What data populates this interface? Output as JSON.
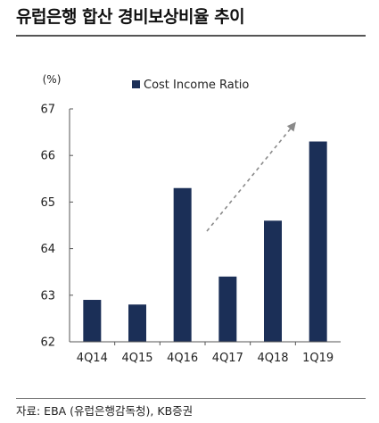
{
  "title": "유럽은행 합산 경비보상비율 추이",
  "source": "자료: EBA (유럽은행감독청), KB증권",
  "chart_data": {
    "type": "bar",
    "unit_label": "(%)",
    "categories": [
      "4Q14",
      "4Q15",
      "4Q16",
      "4Q17",
      "4Q18",
      "1Q19"
    ],
    "series": [
      {
        "name": "Cost Income Ratio",
        "values": [
          62.9,
          62.8,
          65.3,
          63.4,
          64.6,
          66.3
        ]
      }
    ],
    "yticks": [
      "62",
      "63",
      "64",
      "65",
      "66",
      "67"
    ],
    "ylim": [
      62,
      67
    ],
    "colors": {
      "bar": "#1b2f57",
      "trend_arrow": "#8a8a8a"
    },
    "annotation": "dashed-trend-arrow",
    "legend_position": "top",
    "grid": false
  }
}
